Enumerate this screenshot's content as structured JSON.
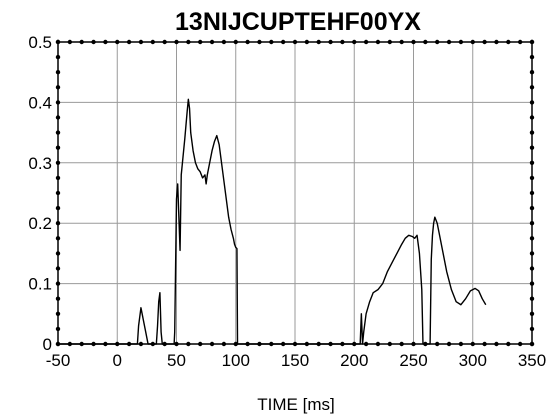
{
  "chart_data": {
    "type": "line",
    "title": "13NIJCUPTEHF00YX",
    "xlabel": "TIME [ms]",
    "ylabel": "",
    "xlim": [
      -50,
      350
    ],
    "ylim": [
      0,
      0.5
    ],
    "grid": true,
    "x_ticks": [
      "-50",
      "0",
      "50",
      "100",
      "150",
      "200",
      "250",
      "300",
      "350"
    ],
    "y_ticks": [
      "0",
      "0.1",
      "0.2",
      "0.3",
      "0.4",
      "0.5"
    ],
    "series": [
      {
        "color": "#000000",
        "points": [
          [
            -50,
            0
          ],
          [
            17,
            0
          ],
          [
            18,
            0.03
          ],
          [
            20,
            0.06
          ],
          [
            22,
            0.04
          ],
          [
            24,
            0.02
          ],
          [
            26,
            0
          ],
          [
            33,
            0
          ],
          [
            34,
            0.03
          ],
          [
            35,
            0.07
          ],
          [
            36,
            0.085
          ],
          [
            37,
            0.02
          ],
          [
            38,
            0
          ],
          [
            48,
            0
          ],
          [
            48.5,
            0.02
          ],
          [
            50,
            0.24
          ],
          [
            51,
            0.265
          ],
          [
            52,
            0.21
          ],
          [
            53,
            0.155
          ],
          [
            54,
            0.28
          ],
          [
            55,
            0.3
          ],
          [
            57,
            0.34
          ],
          [
            59,
            0.385
          ],
          [
            60,
            0.405
          ],
          [
            61,
            0.39
          ],
          [
            62,
            0.35
          ],
          [
            64,
            0.32
          ],
          [
            66,
            0.3
          ],
          [
            68,
            0.29
          ],
          [
            70,
            0.285
          ],
          [
            72,
            0.275
          ],
          [
            74,
            0.28
          ],
          [
            75,
            0.265
          ],
          [
            76,
            0.28
          ],
          [
            78,
            0.3
          ],
          [
            80,
            0.32
          ],
          [
            82,
            0.335
          ],
          [
            84,
            0.345
          ],
          [
            86,
            0.33
          ],
          [
            88,
            0.3
          ],
          [
            90,
            0.27
          ],
          [
            92,
            0.24
          ],
          [
            94,
            0.21
          ],
          [
            96,
            0.19
          ],
          [
            98,
            0.175
          ],
          [
            99,
            0.165
          ],
          [
            100,
            0.16
          ],
          [
            101,
            0.158
          ],
          [
            101.5,
            0
          ],
          [
            205,
            0
          ],
          [
            206,
            0.05
          ],
          [
            207,
            0
          ],
          [
            208,
            0.02
          ],
          [
            210,
            0.05
          ],
          [
            213,
            0.07
          ],
          [
            216,
            0.085
          ],
          [
            220,
            0.09
          ],
          [
            224,
            0.1
          ],
          [
            228,
            0.12
          ],
          [
            232,
            0.135
          ],
          [
            236,
            0.15
          ],
          [
            240,
            0.165
          ],
          [
            243,
            0.175
          ],
          [
            246,
            0.18
          ],
          [
            249,
            0.178
          ],
          [
            251,
            0.175
          ],
          [
            253,
            0.18
          ],
          [
            255,
            0.15
          ],
          [
            257,
            0.09
          ],
          [
            258,
            0
          ],
          [
            264,
            0
          ],
          [
            265,
            0.14
          ],
          [
            266,
            0.18
          ],
          [
            267,
            0.2
          ],
          [
            268,
            0.21
          ],
          [
            270,
            0.2
          ],
          [
            272,
            0.18
          ],
          [
            275,
            0.15
          ],
          [
            278,
            0.12
          ],
          [
            282,
            0.09
          ],
          [
            286,
            0.07
          ],
          [
            290,
            0.065
          ],
          [
            294,
            0.075
          ],
          [
            298,
            0.088
          ],
          [
            302,
            0.092
          ],
          [
            305,
            0.088
          ],
          [
            308,
            0.075
          ],
          [
            311,
            0.065
          ]
        ]
      }
    ]
  }
}
